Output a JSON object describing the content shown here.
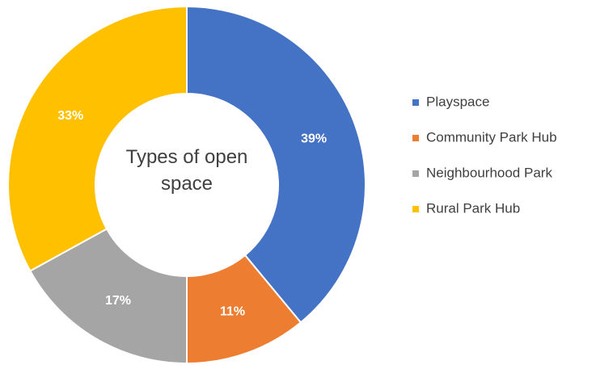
{
  "chart_data": {
    "type": "pie",
    "title": "Types of open space",
    "categories": [
      "Playspace",
      "Community Park Hub",
      "Neighbourhood Park",
      "Rural Park Hub"
    ],
    "values": [
      39,
      11,
      17,
      33
    ],
    "value_labels": [
      "39%",
      "11%",
      "17%",
      "33%"
    ],
    "colors": [
      "#4472c4",
      "#ed7d31",
      "#a5a5a5",
      "#ffc000"
    ],
    "legend": "right"
  }
}
